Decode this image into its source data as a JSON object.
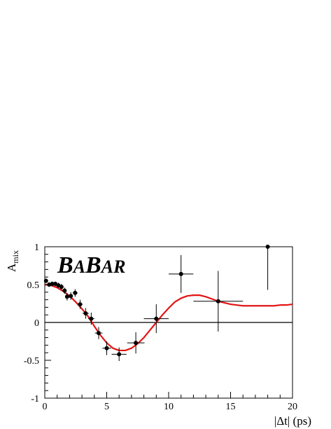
{
  "chart_data": {
    "type": "scatter",
    "logo": "BABAR",
    "xlabel": "|Δt| (ps)",
    "ylabel": "A",
    "ylabel_sub": "mix",
    "xlim": [
      0,
      20
    ],
    "ylim": [
      -1,
      1
    ],
    "x_ticks": [
      "0",
      "5",
      "10",
      "15",
      "20"
    ],
    "y_ticks": [
      "-1",
      "-0.5",
      "0",
      "0.5",
      "1"
    ],
    "zero_line": true,
    "colors": {
      "fit": "#e31414",
      "points": "#000000"
    },
    "series": [
      {
        "type": "scatter",
        "points": [
          {
            "x": 0.1,
            "y": 0.55,
            "xerr": 0.1,
            "yerr": 0.03
          },
          {
            "x": 0.35,
            "y": 0.5,
            "xerr": 0.12,
            "yerr": 0.03
          },
          {
            "x": 0.6,
            "y": 0.51,
            "xerr": 0.12,
            "yerr": 0.03
          },
          {
            "x": 0.85,
            "y": 0.51,
            "xerr": 0.12,
            "yerr": 0.03
          },
          {
            "x": 1.1,
            "y": 0.49,
            "xerr": 0.12,
            "yerr": 0.035
          },
          {
            "x": 1.35,
            "y": 0.47,
            "xerr": 0.12,
            "yerr": 0.04
          },
          {
            "x": 1.6,
            "y": 0.42,
            "xerr": 0.12,
            "yerr": 0.04
          },
          {
            "x": 1.8,
            "y": 0.34,
            "xerr": 0.1,
            "yerr": 0.05
          },
          {
            "x": 2.1,
            "y": 0.35,
            "xerr": 0.15,
            "yerr": 0.05
          },
          {
            "x": 2.45,
            "y": 0.39,
            "xerr": 0.2,
            "yerr": 0.05
          },
          {
            "x": 2.85,
            "y": 0.24,
            "xerr": 0.2,
            "yerr": 0.06
          },
          {
            "x": 3.3,
            "y": 0.12,
            "xerr": 0.25,
            "yerr": 0.07
          },
          {
            "x": 3.75,
            "y": 0.05,
            "xerr": 0.25,
            "yerr": 0.08
          },
          {
            "x": 4.35,
            "y": -0.14,
            "xerr": 0.3,
            "yerr": 0.08
          },
          {
            "x": 5.0,
            "y": -0.34,
            "xerr": 0.35,
            "yerr": 0.09
          },
          {
            "x": 6.0,
            "y": -0.42,
            "xerr": 0.6,
            "yerr": 0.09
          },
          {
            "x": 7.35,
            "y": -0.27,
            "xerr": 0.7,
            "yerr": 0.14
          },
          {
            "x": 9.0,
            "y": 0.05,
            "xerr": 1.0,
            "yerr": 0.19
          },
          {
            "x": 11.0,
            "y": 0.64,
            "xerr": 1.0,
            "yerr": 0.25
          },
          {
            "x": 14.0,
            "y": 0.28,
            "xerr": 2.0,
            "yerr": 0.4
          },
          {
            "x": 18.0,
            "y": 1.0,
            "xerr": 2.0,
            "yerr": 0.57
          }
        ]
      },
      {
        "type": "line",
        "x": [
          0.0,
          0.5,
          1.0,
          1.5,
          2.0,
          2.5,
          3.0,
          3.5,
          4.0,
          4.5,
          5.0,
          5.5,
          6.0,
          6.5,
          7.0,
          7.5,
          8.0,
          8.5,
          9.0,
          9.5,
          10.0,
          10.5,
          11.0,
          11.5,
          12.0,
          12.5,
          13.0,
          13.5,
          14.0,
          14.5,
          15.0,
          15.5,
          16.0,
          16.5,
          17.0,
          17.5,
          18.0,
          18.5,
          19.0,
          19.5,
          20.0
        ],
        "y": [
          0.5,
          0.49,
          0.46,
          0.41,
          0.35,
          0.27,
          0.18,
          0.08,
          -0.05,
          -0.17,
          -0.27,
          -0.34,
          -0.37,
          -0.37,
          -0.34,
          -0.28,
          -0.2,
          -0.1,
          0.0,
          0.1,
          0.19,
          0.27,
          0.32,
          0.35,
          0.36,
          0.36,
          0.34,
          0.31,
          0.28,
          0.26,
          0.24,
          0.23,
          0.22,
          0.22,
          0.22,
          0.22,
          0.22,
          0.22,
          0.23,
          0.23,
          0.24
        ]
      }
    ]
  }
}
